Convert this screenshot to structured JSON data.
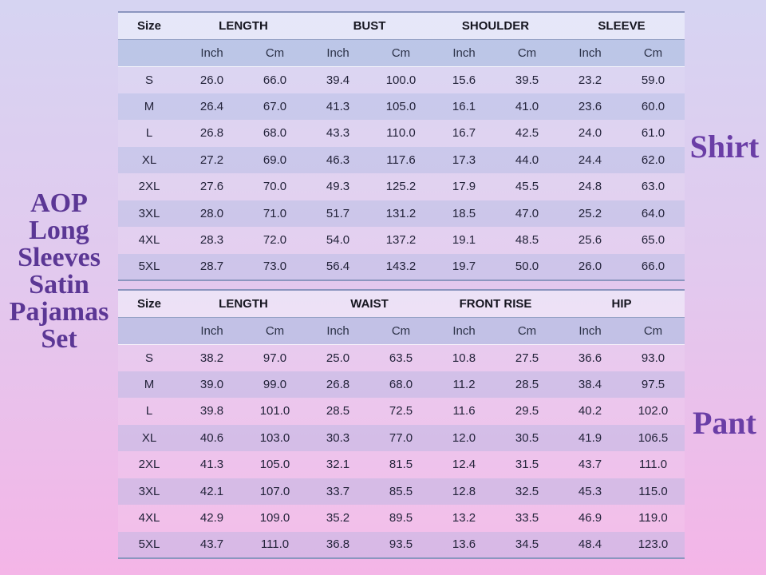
{
  "left_label": {
    "lines": [
      "AOP",
      "Long",
      "Sleeves",
      "Satin",
      "Pajamas",
      "Set"
    ]
  },
  "colors": {
    "background_top": "#d6d4f2",
    "background_bottom": "#f4b5e7",
    "title_purple": "#5b3795",
    "side_label_purple": "#6a3ea6",
    "table_border": "#8b96bf",
    "unit_row_tint": "rgba(170,190,225,0.6)",
    "even_row_tint": "rgba(170,190,225,0.35)",
    "odd_row_tint": "rgba(255,255,255,0.10)",
    "header_row_tint": "rgba(245,252,255,0.5)"
  },
  "tables": [
    {
      "name": "shirt",
      "label": "Shirt",
      "size_header": "Size",
      "group_headers": [
        "LENGTH",
        "BUST",
        "SHOULDER",
        "SLEEVE"
      ],
      "unit_headers": [
        "Inch",
        "Cm",
        "Inch",
        "Cm",
        "Inch",
        "Cm",
        "Inch",
        "Cm"
      ],
      "rows": [
        {
          "size": "S",
          "values": [
            "26.0",
            "66.0",
            "39.4",
            "100.0",
            "15.6",
            "39.5",
            "23.2",
            "59.0"
          ]
        },
        {
          "size": "M",
          "values": [
            "26.4",
            "67.0",
            "41.3",
            "105.0",
            "16.1",
            "41.0",
            "23.6",
            "60.0"
          ]
        },
        {
          "size": "L",
          "values": [
            "26.8",
            "68.0",
            "43.3",
            "110.0",
            "16.7",
            "42.5",
            "24.0",
            "61.0"
          ]
        },
        {
          "size": "XL",
          "values": [
            "27.2",
            "69.0",
            "46.3",
            "117.6",
            "17.3",
            "44.0",
            "24.4",
            "62.0"
          ]
        },
        {
          "size": "2XL",
          "values": [
            "27.6",
            "70.0",
            "49.3",
            "125.2",
            "17.9",
            "45.5",
            "24.8",
            "63.0"
          ]
        },
        {
          "size": "3XL",
          "values": [
            "28.0",
            "71.0",
            "51.7",
            "131.2",
            "18.5",
            "47.0",
            "25.2",
            "64.0"
          ]
        },
        {
          "size": "4XL",
          "values": [
            "28.3",
            "72.0",
            "54.0",
            "137.2",
            "19.1",
            "48.5",
            "25.6",
            "65.0"
          ]
        },
        {
          "size": "5XL",
          "values": [
            "28.7",
            "73.0",
            "56.4",
            "143.2",
            "19.7",
            "50.0",
            "26.0",
            "66.0"
          ]
        }
      ]
    },
    {
      "name": "pant",
      "label": "Pant",
      "size_header": "Size",
      "group_headers": [
        "LENGTH",
        "WAIST",
        "FRONT RISE",
        "HIP"
      ],
      "unit_headers": [
        "Inch",
        "Cm",
        "Inch",
        "Cm",
        "Inch",
        "Cm",
        "Inch",
        "Cm"
      ],
      "rows": [
        {
          "size": "S",
          "values": [
            "38.2",
            "97.0",
            "25.0",
            "63.5",
            "10.8",
            "27.5",
            "36.6",
            "93.0"
          ]
        },
        {
          "size": "M",
          "values": [
            "39.0",
            "99.0",
            "26.8",
            "68.0",
            "11.2",
            "28.5",
            "38.4",
            "97.5"
          ]
        },
        {
          "size": "L",
          "values": [
            "39.8",
            "101.0",
            "28.5",
            "72.5",
            "11.6",
            "29.5",
            "40.2",
            "102.0"
          ]
        },
        {
          "size": "XL",
          "values": [
            "40.6",
            "103.0",
            "30.3",
            "77.0",
            "12.0",
            "30.5",
            "41.9",
            "106.5"
          ]
        },
        {
          "size": "2XL",
          "values": [
            "41.3",
            "105.0",
            "32.1",
            "81.5",
            "12.4",
            "31.5",
            "43.7",
            "111.0"
          ]
        },
        {
          "size": "3XL",
          "values": [
            "42.1",
            "107.0",
            "33.7",
            "85.5",
            "12.8",
            "32.5",
            "45.3",
            "115.0"
          ]
        },
        {
          "size": "4XL",
          "values": [
            "42.9",
            "109.0",
            "35.2",
            "89.5",
            "13.2",
            "33.5",
            "46.9",
            "119.0"
          ]
        },
        {
          "size": "5XL",
          "values": [
            "43.7",
            "111.0",
            "36.8",
            "93.5",
            "13.6",
            "34.5",
            "48.4",
            "123.0"
          ]
        }
      ]
    }
  ]
}
